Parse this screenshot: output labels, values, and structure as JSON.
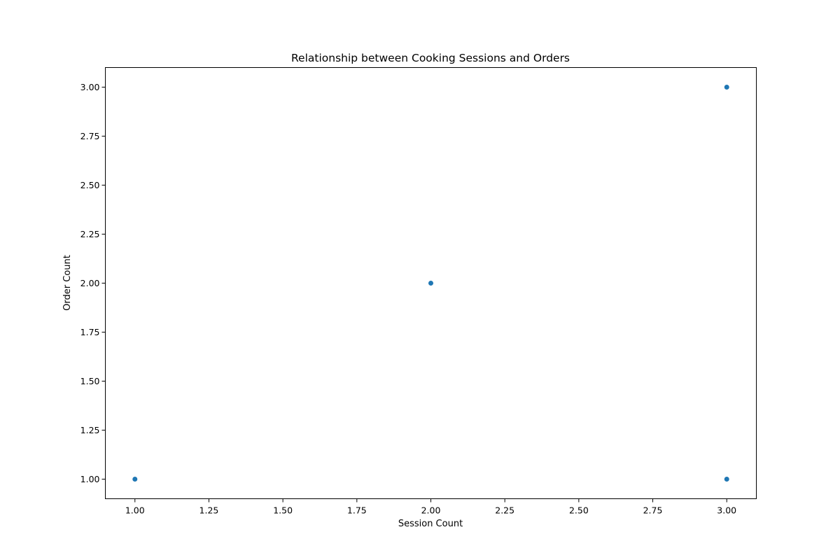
{
  "chart_data": {
    "type": "scatter",
    "title": "Relationship between Cooking Sessions and Orders",
    "xlabel": "Session Count",
    "ylabel": "Order Count",
    "xlim": [
      0.9,
      3.1
    ],
    "ylim": [
      0.9,
      3.1
    ],
    "xticks": [
      1.0,
      1.25,
      1.5,
      1.75,
      2.0,
      2.25,
      2.5,
      2.75,
      3.0
    ],
    "xtick_labels": [
      "1.00",
      "1.25",
      "1.50",
      "1.75",
      "2.00",
      "2.25",
      "2.50",
      "2.75",
      "3.00"
    ],
    "yticks": [
      1.0,
      1.25,
      1.5,
      1.75,
      2.0,
      2.25,
      2.5,
      2.75,
      3.0
    ],
    "ytick_labels": [
      "1.00",
      "1.25",
      "1.50",
      "1.75",
      "2.00",
      "2.25",
      "2.50",
      "2.75",
      "3.00"
    ],
    "grid": false,
    "legend": "none",
    "point_color": "#1f77b4",
    "points": [
      {
        "x": 1,
        "y": 1
      },
      {
        "x": 2,
        "y": 2
      },
      {
        "x": 3,
        "y": 3
      },
      {
        "x": 3,
        "y": 1
      }
    ]
  }
}
